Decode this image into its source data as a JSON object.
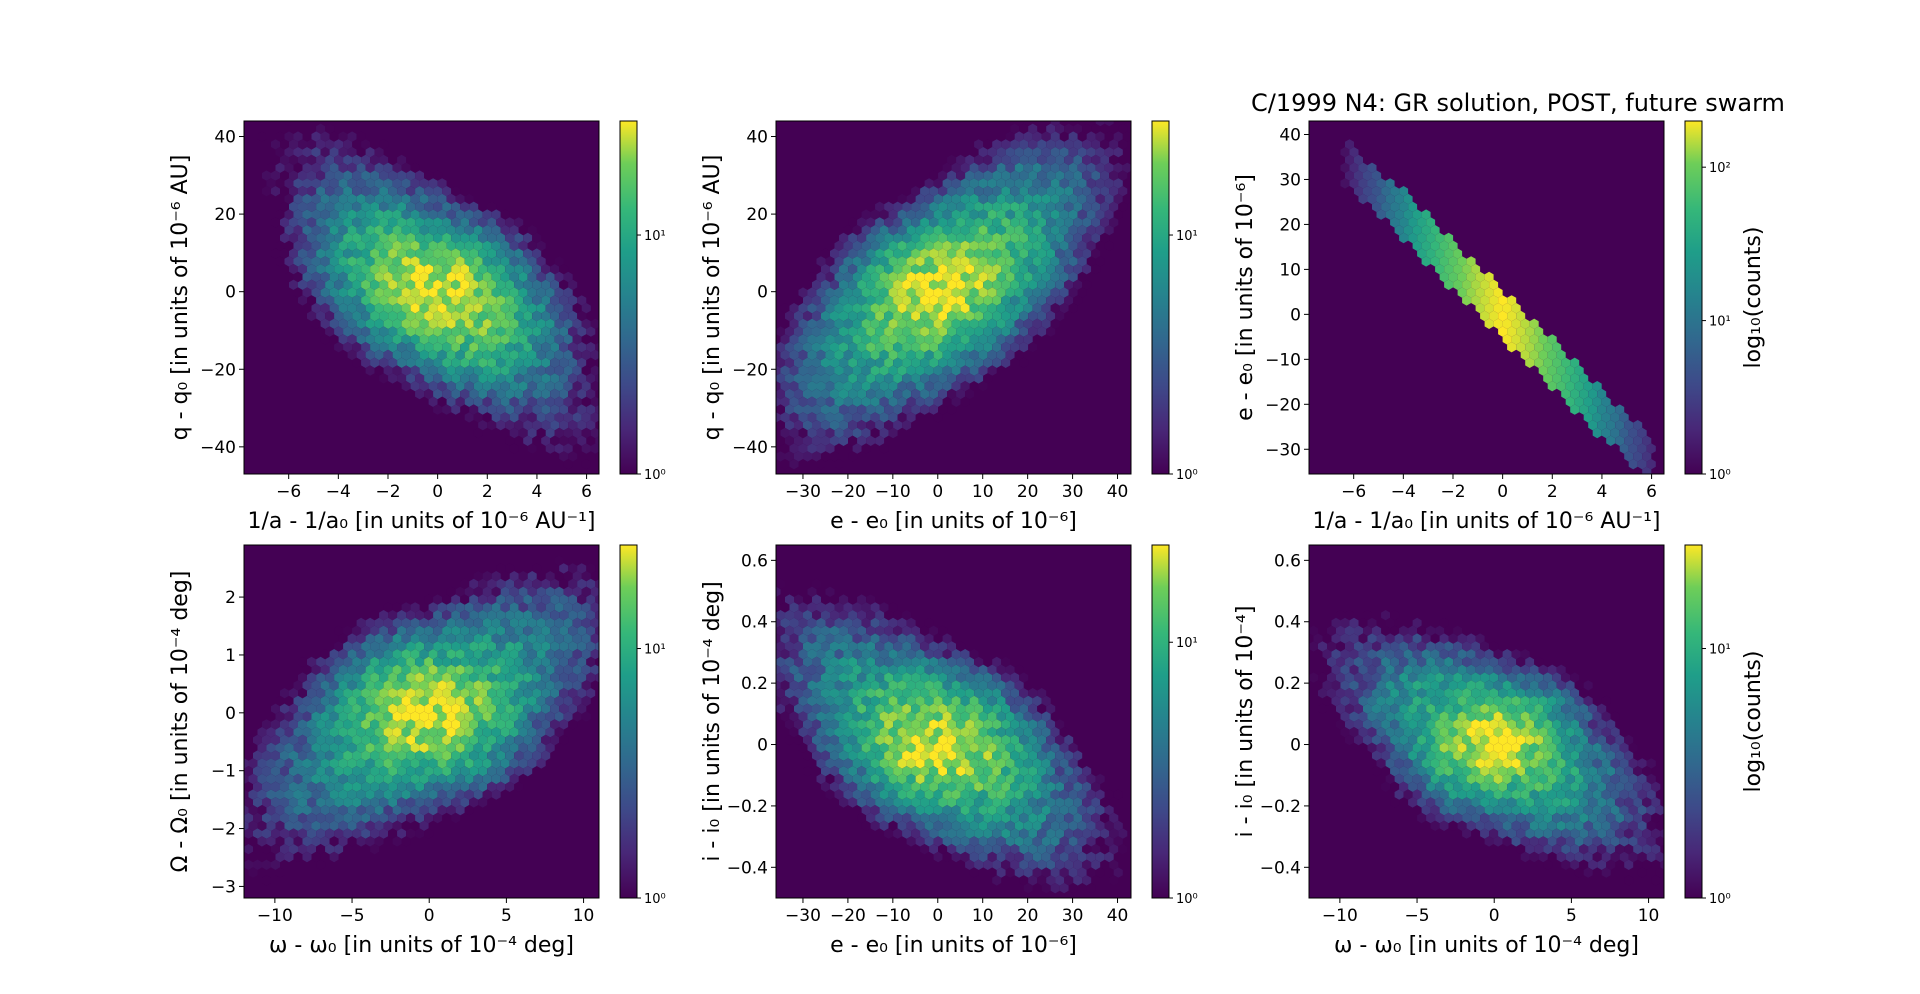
{
  "figure_title": "C/1999 N4: GR solution, POST, future swarm",
  "colormap": "viridis",
  "background_color": "#440154",
  "chart_data": [
    {
      "id": "p1",
      "type": "heatmap",
      "subtype": "hexbin-log",
      "xlabel": "1/a - 1/a₀ [in units of 10⁻⁶ AU⁻¹]",
      "ylabel": "q - q₀ [in units of 10⁻⁶ AU]",
      "xlim": [
        -7.8,
        6.5
      ],
      "ylim": [
        -47,
        44
      ],
      "xticks": [
        -6,
        -4,
        -2,
        0,
        2,
        4,
        6
      ],
      "yticks": [
        -40,
        -20,
        0,
        20,
        40
      ],
      "points": [
        [
          -5.5,
          38,
          1
        ],
        [
          -4.5,
          30,
          2
        ],
        [
          -3.5,
          22,
          4
        ],
        [
          -3,
          18,
          6
        ],
        [
          -2.5,
          14,
          9
        ],
        [
          -2,
          10,
          14
        ],
        [
          -1.5,
          7,
          18
        ],
        [
          -1,
          4,
          22
        ],
        [
          -0.5,
          2,
          26
        ],
        [
          0,
          0,
          30
        ],
        [
          0.5,
          -2,
          26
        ],
        [
          1,
          -5,
          22
        ],
        [
          1.5,
          -8,
          18
        ],
        [
          2,
          -11,
          14
        ],
        [
          2.5,
          -14,
          9
        ],
        [
          3,
          -18,
          6
        ],
        [
          3.5,
          -22,
          4
        ],
        [
          4.5,
          -30,
          2
        ],
        [
          5.5,
          -38,
          1
        ]
      ],
      "spread": [
        1.9,
        0.86,
        9.8
      ],
      "colorbar": {
        "min": 1,
        "max": 30,
        "ticks": [
          "10⁰",
          "10¹"
        ],
        "label": ""
      }
    },
    {
      "id": "p2",
      "type": "heatmap",
      "subtype": "hexbin-log",
      "xlabel": "e - e₀ [in units of 10⁻⁶]",
      "ylabel": "q - q₀ [in units of 10⁻⁶ AU]",
      "xlim": [
        -36,
        43
      ],
      "ylim": [
        -47,
        44
      ],
      "xticks": [
        -30,
        -20,
        -10,
        0,
        10,
        20,
        30,
        40
      ],
      "yticks": [
        -40,
        -20,
        0,
        20,
        40
      ],
      "points": [
        [
          -33,
          -40,
          1
        ],
        [
          -27,
          -32,
          2
        ],
        [
          -22,
          -26,
          4
        ],
        [
          -18,
          -20,
          7
        ],
        [
          -14,
          -15,
          10
        ],
        [
          -10,
          -11,
          15
        ],
        [
          -6,
          -7,
          20
        ],
        [
          -3,
          -3,
          25
        ],
        [
          0,
          0,
          30
        ],
        [
          4,
          4,
          25
        ],
        [
          8,
          8,
          20
        ],
        [
          12,
          12,
          15
        ],
        [
          16,
          17,
          10
        ],
        [
          20,
          22,
          7
        ],
        [
          25,
          27,
          4
        ],
        [
          30,
          33,
          2
        ],
        [
          35,
          40,
          1
        ]
      ],
      "spread": [
        10.5,
        0.86,
        9.8
      ],
      "colorbar": {
        "min": 1,
        "max": 30,
        "ticks": [
          "10⁰",
          "10¹"
        ],
        "label": ""
      }
    },
    {
      "id": "p3",
      "type": "heatmap",
      "subtype": "hexbin-log",
      "title": "C/1999 N4: GR solution, POST, future swarm",
      "xlabel": "1/a - 1/a₀ [in units of 10⁻⁶ AU⁻¹]",
      "ylabel": "e - e₀ [in units of 10⁻⁶]",
      "xlim": [
        -7.8,
        6.5
      ],
      "ylim": [
        -35.5,
        43
      ],
      "xticks": [
        -6,
        -4,
        -2,
        0,
        2,
        4,
        6
      ],
      "yticks": [
        -30,
        -20,
        -10,
        0,
        10,
        20,
        30,
        40
      ],
      "points": [
        [
          -6.5,
          34.5,
          1
        ],
        [
          -6,
          32,
          2
        ],
        [
          -5,
          27,
          5
        ],
        [
          -4,
          22,
          15
        ],
        [
          -3,
          16.5,
          40
        ],
        [
          -2,
          11,
          80
        ],
        [
          -1,
          5.5,
          140
        ],
        [
          0,
          0,
          200
        ],
        [
          1,
          -5.5,
          140
        ],
        [
          2,
          -11,
          80
        ],
        [
          3,
          -16.5,
          40
        ],
        [
          4,
          -22,
          15
        ],
        [
          5,
          -27,
          5
        ],
        [
          6,
          -32.5,
          2
        ]
      ],
      "spread": [
        0,
        1.0,
        0
      ],
      "colorbar": {
        "min": 1,
        "max": 200,
        "ticks": [
          "10⁰",
          "10¹",
          "10²"
        ],
        "label": "log₁₀(counts)"
      }
    },
    {
      "id": "p4",
      "type": "heatmap",
      "subtype": "hexbin-log",
      "xlabel": "ω - ω₀ [in units of 10⁻⁴ deg]",
      "ylabel": "Ω - Ω₀ [in units of 10⁻⁴ deg]",
      "xlim": [
        -12,
        11
      ],
      "ylim": [
        -3.2,
        2.9
      ],
      "xticks": [
        -10,
        -5,
        0,
        5,
        10
      ],
      "yticks": [
        -3,
        -2,
        -1,
        0,
        1,
        2
      ],
      "points": [
        [
          -11,
          -2.3,
          1
        ],
        [
          -9,
          -1.7,
          2
        ],
        [
          -7,
          -1.3,
          4
        ],
        [
          -5,
          -0.9,
          7
        ],
        [
          -3,
          -0.5,
          12
        ],
        [
          -1.5,
          -0.2,
          18
        ],
        [
          0,
          0,
          26
        ],
        [
          1.5,
          0.2,
          18
        ],
        [
          3,
          0.5,
          12
        ],
        [
          5,
          0.9,
          7
        ],
        [
          7,
          1.3,
          4
        ],
        [
          9,
          1.7,
          2
        ],
        [
          10.5,
          2.1,
          1
        ]
      ],
      "spread": [
        3.4,
        0.3,
        0.75
      ],
      "colorbar": {
        "min": 1,
        "max": 26,
        "ticks": [
          "10⁰",
          "10¹"
        ],
        "label": ""
      }
    },
    {
      "id": "p5",
      "type": "heatmap",
      "subtype": "hexbin-log",
      "xlabel": "e - e₀ [in units of 10⁻⁶]",
      "ylabel": "i - i₀ [in units of 10⁻⁴ deg]",
      "xlim": [
        -36,
        43
      ],
      "ylim": [
        -0.5,
        0.65
      ],
      "xticks": [
        -30,
        -20,
        -10,
        0,
        10,
        20,
        30,
        40
      ],
      "yticks": [
        -0.4,
        -0.2,
        0.0,
        0.2,
        0.4,
        0.6
      ],
      "points": [
        [
          -34,
          0.45,
          1
        ],
        [
          -28,
          0.35,
          2
        ],
        [
          -22,
          0.27,
          4
        ],
        [
          -16,
          0.19,
          7
        ],
        [
          -10,
          0.11,
          12
        ],
        [
          -5,
          0.05,
          18
        ],
        [
          0,
          0,
          24
        ],
        [
          5,
          -0.05,
          18
        ],
        [
          10,
          -0.11,
          12
        ],
        [
          16,
          -0.18,
          7
        ],
        [
          22,
          -0.25,
          4
        ],
        [
          28,
          -0.32,
          2
        ],
        [
          34,
          -0.4,
          1
        ]
      ],
      "spread": [
        11,
        0.3,
        0.13
      ],
      "colorbar": {
        "min": 1,
        "max": 24,
        "ticks": [
          "10⁰",
          "10¹"
        ],
        "label": ""
      }
    },
    {
      "id": "p6",
      "type": "heatmap",
      "subtype": "hexbin-log",
      "xlabel": "ω - ω₀ [in units of 10⁻⁴ deg]",
      "ylabel": "i - i₀ [in units of 10⁻⁴]",
      "xlim": [
        -12,
        11
      ],
      "ylim": [
        -0.5,
        0.65
      ],
      "xticks": [
        -10,
        -5,
        0,
        5,
        10
      ],
      "yticks": [
        -0.4,
        -0.2,
        0.0,
        0.2,
        0.4,
        0.6
      ],
      "points": [
        [
          -10,
          0.35,
          1
        ],
        [
          -8,
          0.28,
          2
        ],
        [
          -6,
          0.21,
          4
        ],
        [
          -4,
          0.14,
          8
        ],
        [
          -2,
          0.07,
          14
        ],
        [
          0,
          0,
          26
        ],
        [
          2,
          -0.07,
          14
        ],
        [
          4,
          -0.14,
          8
        ],
        [
          6,
          -0.21,
          4
        ],
        [
          8,
          -0.28,
          2
        ],
        [
          10,
          -0.35,
          1
        ]
      ],
      "spread": [
        3.2,
        0.3,
        0.12
      ],
      "colorbar": {
        "min": 1,
        "max": 26,
        "ticks": [
          "10⁰",
          "10¹"
        ],
        "label": "log₁₀(counts)"
      }
    }
  ]
}
